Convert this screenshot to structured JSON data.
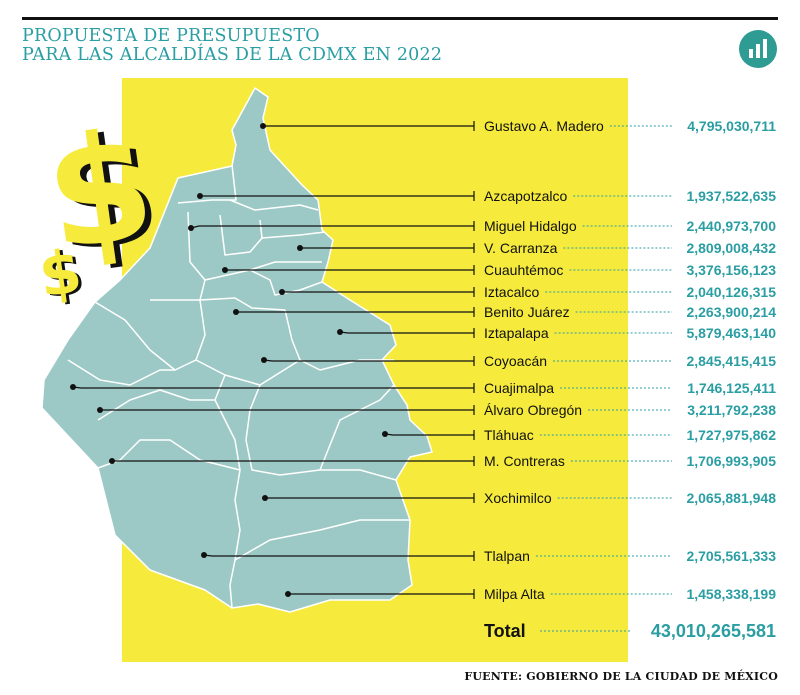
{
  "title": {
    "line1": "PROPUESTA DE PRESUPUESTO",
    "line2": "PARA LAS ALCALDÍAS DE LA CDMX EN 2022"
  },
  "icons": {
    "header": "bar-chart-icon",
    "decoration": "dollar-sign-icon"
  },
  "colors": {
    "accent": "#2a9ea3",
    "map": "#9cc9c5",
    "highlight": "#f6eb3c",
    "text": "#111111"
  },
  "source": "FUENTE: GOBIERNO DE LA CIUDAD DE MÉXICO",
  "chart_data": {
    "type": "table",
    "categories": [
      "Gustavo A. Madero",
      "Azcapotzalco",
      "Miguel Hidalgo",
      "V. Carranza",
      "Cuauhtémoc",
      "Iztacalco",
      "Benito Juárez",
      "Iztapalapa",
      "Coyoacán",
      "Cuajimalpa",
      "Álvaro Obregón",
      "Tláhuac",
      "M. Contreras",
      "Xochimilco",
      "Tlalpan",
      "Milpa Alta"
    ],
    "values": [
      "4,795,030,711",
      "1,937,522,635",
      "2,440,973,700",
      "2,809,008,432",
      "3,376,156,123",
      "2,040,126,315",
      "2,263,900,214",
      "5,879,463,140",
      "2,845,415,415",
      "1,746,125,411",
      "3,211,792,238",
      "1,727,975,862",
      "1,706,993,905",
      "2,065,881,948",
      "2,705,561,333",
      "1,458,338,199"
    ],
    "total_label": "Total",
    "total_value": "43,010,265,581"
  }
}
